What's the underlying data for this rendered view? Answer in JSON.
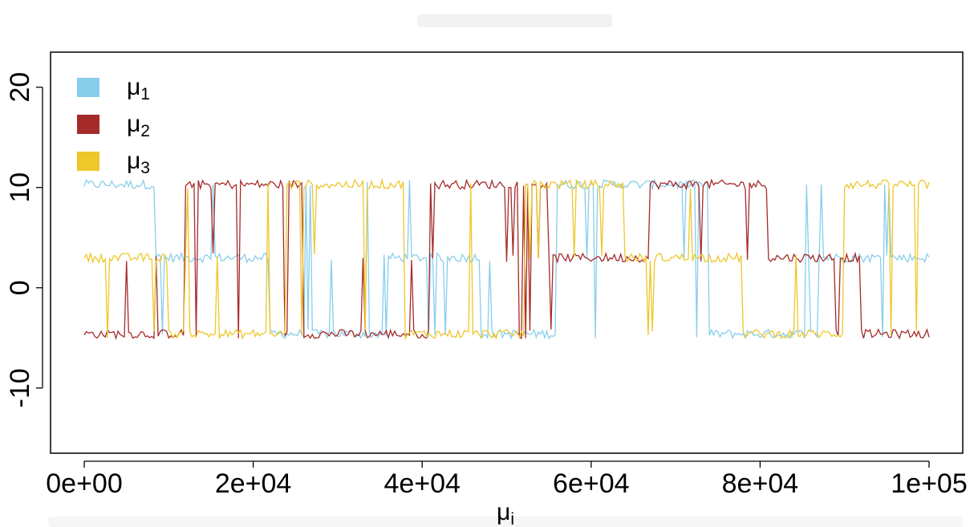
{
  "chart_data": {
    "type": "line",
    "title": "",
    "xlabel": "μi",
    "ylabel": "",
    "xlim": [
      0,
      100000
    ],
    "ylim": [
      -16.5,
      23.5
    ],
    "x_ticks": [
      "0e+00",
      "2e+04",
      "4e+04",
      "6e+04",
      "8e+04",
      "1e+05"
    ],
    "y_ticks": [
      "-10",
      "0",
      "10",
      "20"
    ],
    "grid": false,
    "legend": {
      "placement": "top-left",
      "entries": [
        {
          "label": "μ",
          "sub": "1",
          "color": "#87CEEB"
        },
        {
          "label": "μ",
          "sub": "2",
          "color": "#A52A2A"
        },
        {
          "label": "μ",
          "sub": "3",
          "color": "#EEC72A"
        }
      ]
    },
    "levels": [
      10.3,
      3.0,
      -4.6
    ],
    "level_noise": 0.45,
    "iterations": 100000,
    "series": [
      {
        "name": "μ1",
        "color": "#87CEEB",
        "segments": [
          {
            "x_start": 0,
            "x_end": 8500,
            "level": 10.3
          },
          {
            "x_start": 8500,
            "x_end": 22000,
            "level": 3.0
          },
          {
            "x_start": 22000,
            "x_end": 36000,
            "level": -4.6
          },
          {
            "x_start": 36000,
            "x_end": 47000,
            "level": 3.0
          },
          {
            "x_start": 47000,
            "x_end": 56000,
            "level": -4.6
          },
          {
            "x_start": 56000,
            "x_end": 74000,
            "level": 10.3
          },
          {
            "x_start": 74000,
            "x_end": 87000,
            "level": -4.6
          },
          {
            "x_start": 87000,
            "x_end": 100000,
            "level": 3.0
          }
        ]
      },
      {
        "name": "μ2",
        "color": "#A52A2A",
        "segments": [
          {
            "x_start": 0,
            "x_end": 12000,
            "level": -4.6
          },
          {
            "x_start": 12000,
            "x_end": 26000,
            "level": 10.3
          },
          {
            "x_start": 26000,
            "x_end": 41000,
            "level": -4.6
          },
          {
            "x_start": 41000,
            "x_end": 55000,
            "level": 10.3
          },
          {
            "x_start": 55000,
            "x_end": 67000,
            "level": 3.0
          },
          {
            "x_start": 67000,
            "x_end": 81000,
            "level": 10.3
          },
          {
            "x_start": 81000,
            "x_end": 92000,
            "level": 3.0
          },
          {
            "x_start": 92000,
            "x_end": 100000,
            "level": -4.6
          }
        ]
      },
      {
        "name": "μ3",
        "color": "#EEC72A",
        "segments": [
          {
            "x_start": 0,
            "x_end": 10000,
            "level": 3.0
          },
          {
            "x_start": 10000,
            "x_end": 24000,
            "level": -4.6
          },
          {
            "x_start": 24000,
            "x_end": 38000,
            "level": 10.3
          },
          {
            "x_start": 38000,
            "x_end": 52000,
            "level": -4.6
          },
          {
            "x_start": 52000,
            "x_end": 64000,
            "level": 10.3
          },
          {
            "x_start": 64000,
            "x_end": 78000,
            "level": 3.0
          },
          {
            "x_start": 78000,
            "x_end": 90000,
            "level": -4.6
          },
          {
            "x_start": 90000,
            "x_end": 100000,
            "level": 10.3
          }
        ]
      }
    ]
  }
}
